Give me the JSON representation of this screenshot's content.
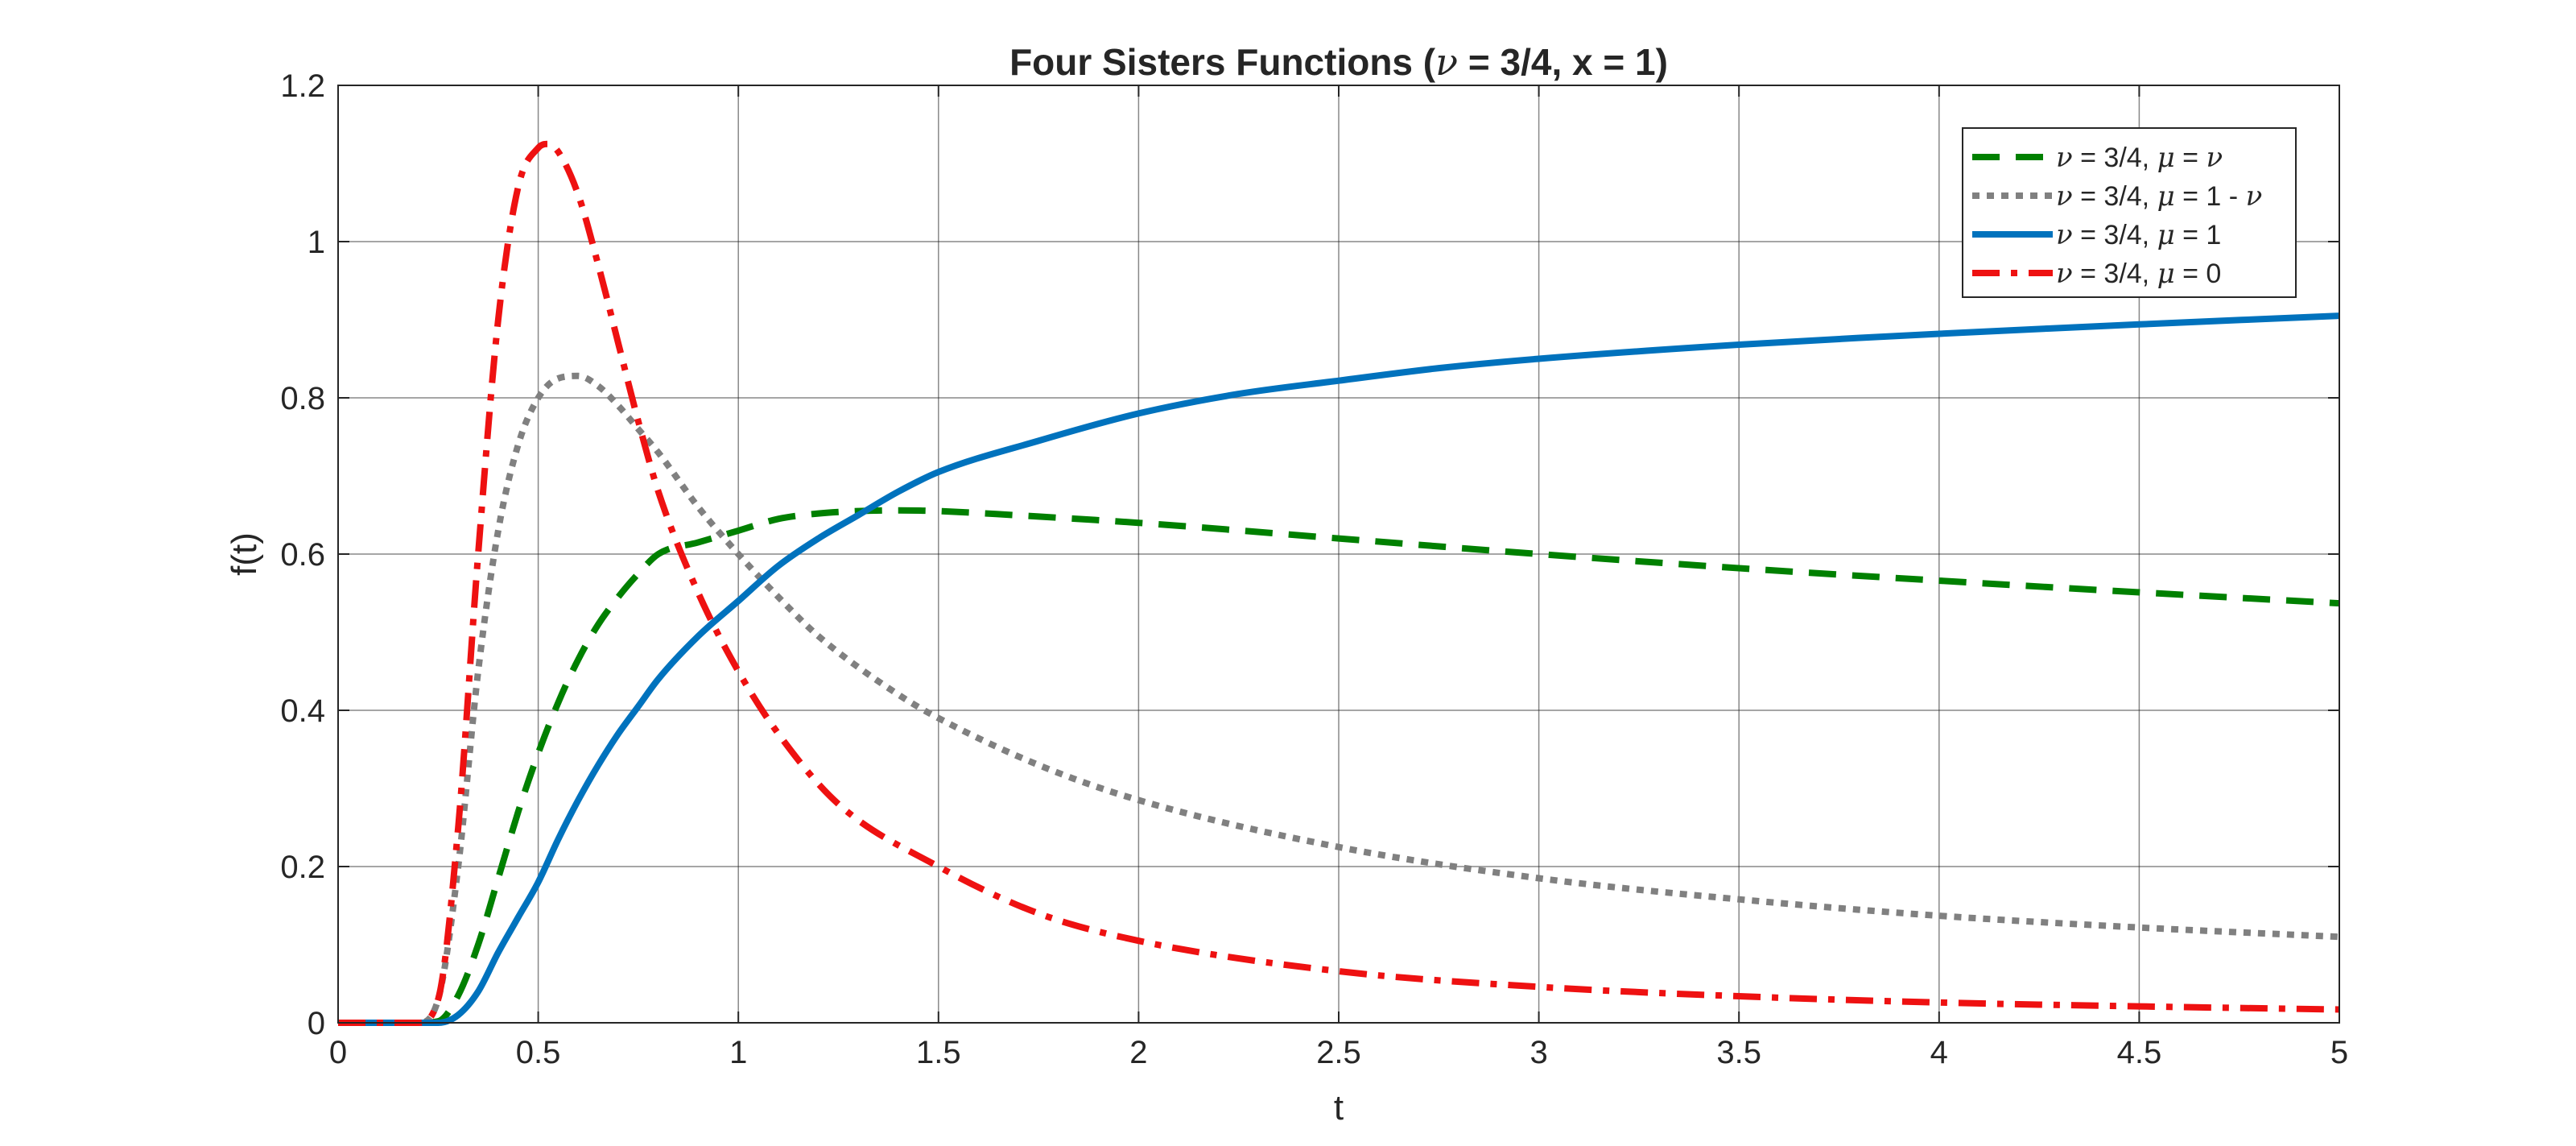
{
  "chart_data": {
    "type": "line",
    "title_parts": [
      "Four Sisters Functions (",
      "ν",
      " = 3/4, x = 1)"
    ],
    "xlabel": "t",
    "ylabel": "f(t)",
    "xlim": [
      0,
      5
    ],
    "ylim": [
      0,
      1.2
    ],
    "xticks": [
      0,
      0.5,
      1,
      1.5,
      2,
      2.5,
      3,
      3.5,
      4,
      4.5,
      5
    ],
    "xtick_labels": [
      "0",
      "0.5",
      "1",
      "1.5",
      "2",
      "2.5",
      "3",
      "3.5",
      "4",
      "4.5",
      "5"
    ],
    "yticks": [
      0,
      0.2,
      0.4,
      0.6,
      0.8,
      1,
      1.2
    ],
    "ytick_labels": [
      "0",
      "0.2",
      "0.4",
      "0.6",
      "0.8",
      "1",
      "1.2"
    ],
    "grid": true,
    "legend_position": "top-right",
    "series": [
      {
        "name_parts": [
          "ν",
          " = 3/4, ",
          "μ",
          " = ",
          "ν",
          ""
        ],
        "color": "#008000",
        "style": "dashed",
        "x": [
          0,
          0.2,
          0.25,
          0.3,
          0.35,
          0.4,
          0.45,
          0.5,
          0.55,
          0.6,
          0.65,
          0.7,
          0.75,
          0.8,
          0.9,
          1.0,
          1.1,
          1.2,
          1.3,
          1.4,
          1.5,
          1.75,
          2,
          2.5,
          3,
          3.5,
          4,
          4.5,
          5
        ],
        "y": [
          0,
          0,
          0.002,
          0.035,
          0.1,
          0.185,
          0.27,
          0.345,
          0.41,
          0.465,
          0.51,
          0.545,
          0.575,
          0.6,
          0.615,
          0.63,
          0.645,
          0.652,
          0.655,
          0.656,
          0.655,
          0.648,
          0.64,
          0.62,
          0.6,
          0.582,
          0.566,
          0.551,
          0.537
        ]
      },
      {
        "name_parts": [
          "ν",
          " = 3/4, ",
          "μ",
          " = 1 - ",
          "ν",
          ""
        ],
        "color": "#808080",
        "style": "dotted",
        "x": [
          0,
          0.2,
          0.25,
          0.3,
          0.35,
          0.4,
          0.45,
          0.5,
          0.55,
          0.6,
          0.65,
          0.7,
          0.75,
          0.8,
          0.9,
          1.0,
          1.1,
          1.2,
          1.4,
          1.5,
          1.75,
          2,
          2.5,
          3,
          3.5,
          4,
          4.5,
          5
        ],
        "y": [
          0,
          0,
          0.03,
          0.2,
          0.45,
          0.63,
          0.74,
          0.8,
          0.825,
          0.828,
          0.815,
          0.79,
          0.76,
          0.73,
          0.66,
          0.6,
          0.545,
          0.495,
          0.42,
          0.39,
          0.33,
          0.285,
          0.225,
          0.185,
          0.158,
          0.137,
          0.122,
          0.11
        ]
      },
      {
        "name_parts": [
          "ν",
          " = 3/4, ",
          "μ",
          " = 1",
          "",
          ""
        ],
        "color": "#0072BD",
        "style": "solid",
        "x": [
          0,
          0.2,
          0.25,
          0.3,
          0.35,
          0.4,
          0.45,
          0.5,
          0.55,
          0.6,
          0.65,
          0.7,
          0.75,
          0.8,
          0.9,
          1.0,
          1.1,
          1.2,
          1.3,
          1.4,
          1.5,
          1.75,
          2,
          2.25,
          2.5,
          2.75,
          3,
          3.5,
          4,
          4.5,
          5
        ],
        "y": [
          0,
          0,
          0,
          0.01,
          0.04,
          0.09,
          0.135,
          0.18,
          0.235,
          0.285,
          0.33,
          0.37,
          0.405,
          0.44,
          0.495,
          0.54,
          0.585,
          0.62,
          0.65,
          0.68,
          0.705,
          0.745,
          0.78,
          0.805,
          0.822,
          0.838,
          0.85,
          0.868,
          0.882,
          0.894,
          0.905
        ]
      },
      {
        "name_parts": [
          "ν",
          " = 3/4, ",
          "μ",
          " = 0",
          "",
          ""
        ],
        "color": "#EE1111",
        "style": "dashdot",
        "x": [
          0,
          0.2,
          0.25,
          0.3,
          0.35,
          0.4,
          0.45,
          0.5,
          0.525,
          0.55,
          0.6,
          0.65,
          0.7,
          0.75,
          0.8,
          0.9,
          1.0,
          1.1,
          1.25,
          1.5,
          1.75,
          2,
          2.5,
          3,
          3.5,
          4,
          4.5,
          5
        ],
        "y": [
          0,
          0,
          0.03,
          0.25,
          0.6,
          0.9,
          1.07,
          1.12,
          1.125,
          1.115,
          1.06,
          0.97,
          0.87,
          0.77,
          0.68,
          0.55,
          0.45,
          0.37,
          0.28,
          0.2,
          0.14,
          0.105,
          0.066,
          0.046,
          0.034,
          0.026,
          0.021,
          0.017
        ]
      }
    ]
  }
}
